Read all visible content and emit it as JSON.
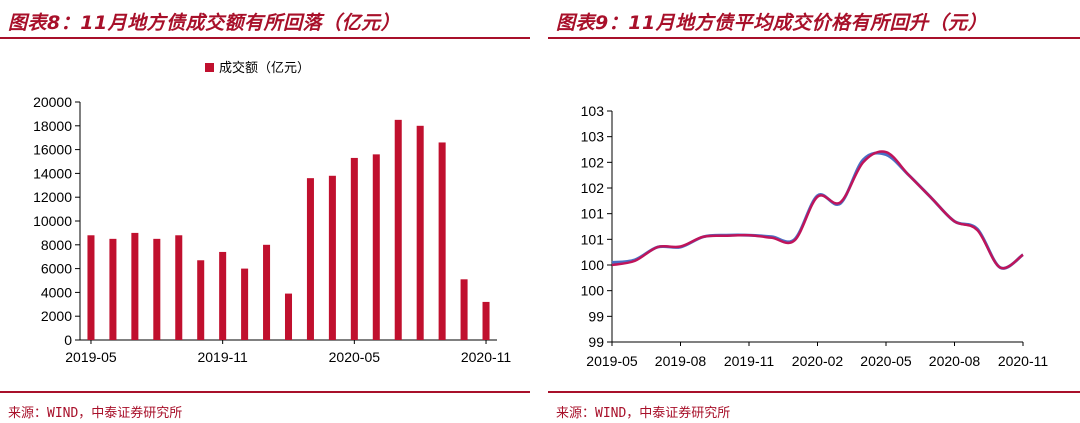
{
  "colors": {
    "accent": "#a8102a",
    "bar": "#c0102e",
    "line_a": "#4a6fc4",
    "line_b": "#c0145a"
  },
  "left": {
    "title": "图表8：11月地方债成交额有所回落（亿元）",
    "source": "来源：WIND，中泰证券研究所"
  },
  "right": {
    "title": "图表9：11月地方债平均成交价格有所回升（元）",
    "source": "来源：WIND，中泰证券研究所"
  },
  "chart_data": [
    {
      "type": "bar",
      "legend": [
        "成交额（亿元）"
      ],
      "categories": [
        "2019-05",
        "2019-06",
        "2019-07",
        "2019-08",
        "2019-09",
        "2019-10",
        "2019-11",
        "2019-12",
        "2020-01",
        "2020-02",
        "2020-03",
        "2020-04",
        "2020-05",
        "2020-06",
        "2020-07",
        "2020-08",
        "2020-09",
        "2020-10",
        "2020-11"
      ],
      "x_tick_labels": [
        "2019-05",
        "2019-11",
        "2020-05",
        "2020-11"
      ],
      "series": [
        {
          "name": "成交额（亿元）",
          "values": [
            8800,
            8500,
            9000,
            8500,
            8800,
            6700,
            7400,
            6000,
            8000,
            3900,
            13600,
            13800,
            15300,
            15600,
            18500,
            18000,
            16600,
            5100,
            3200
          ]
        }
      ],
      "ylim": [
        0,
        20000
      ],
      "y_ticks": [
        0,
        2000,
        4000,
        6000,
        8000,
        10000,
        12000,
        14000,
        16000,
        18000,
        20000
      ],
      "legend_position": "top"
    },
    {
      "type": "line",
      "x": [
        "2019-05",
        "2019-06",
        "2019-07",
        "2019-08",
        "2019-09",
        "2019-10",
        "2019-11",
        "2019-12",
        "2020-01",
        "2020-02",
        "2020-03",
        "2020-04",
        "2020-05",
        "2020-06",
        "2020-07",
        "2020-08",
        "2020-09",
        "2020-10",
        "2020-11"
      ],
      "x_tick_labels": [
        "2019-05",
        "2019-08",
        "2019-11",
        "2020-02",
        "2020-05",
        "2020-08",
        "2020-11"
      ],
      "series": [
        {
          "values": [
            100.55,
            100.6,
            100.85,
            100.85,
            101.05,
            101.08,
            101.08,
            101.05,
            101.0,
            101.85,
            101.7,
            102.55,
            102.65,
            102.25,
            101.8,
            101.35,
            101.2,
            100.45,
            100.7
          ]
        },
        {
          "values": [
            100.5,
            100.58,
            100.85,
            100.86,
            101.05,
            101.07,
            101.08,
            101.03,
            100.98,
            101.83,
            101.72,
            102.5,
            102.7,
            102.25,
            101.8,
            101.35,
            101.18,
            100.45,
            100.7
          ]
        }
      ],
      "ylim": [
        99.0,
        103.5
      ],
      "y_tick_labels": [
        "99",
        "99",
        "100",
        "100",
        "101",
        "101",
        "102",
        "102",
        "103",
        "103"
      ]
    }
  ]
}
